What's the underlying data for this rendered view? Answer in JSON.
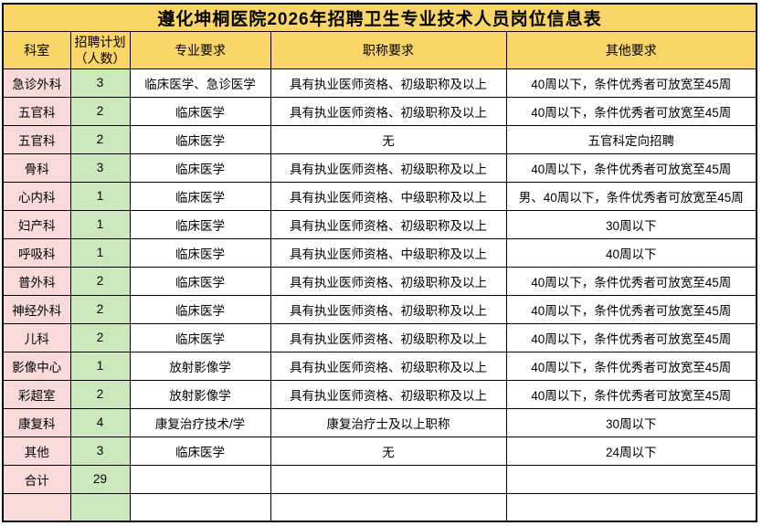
{
  "title": "遵化坤桐医院2026年招聘卫生专业技术人员岗位信息表",
  "table": {
    "headers": [
      "科室",
      "招聘计划（人数）",
      "专业要求",
      "职称要求",
      "其他要求"
    ],
    "column_names": [
      "department",
      "planned-count",
      "major-requirement",
      "title-requirement",
      "other-requirement"
    ],
    "rows": [
      {
        "cells": [
          "急诊外科",
          "3",
          "临床医学、急诊医学",
          "具有执业医师资格、初级职称及以上",
          "40周以下，条件优秀者可放宽至45周"
        ]
      },
      {
        "cells": [
          "五官科",
          "2",
          "临床医学",
          "具有执业医师资格、初级职称及以上",
          "40周以下，条件优秀者可放宽至45周"
        ]
      },
      {
        "cells": [
          "五官科",
          "2",
          "临床医学",
          "无",
          "五官科定向招聘"
        ]
      },
      {
        "cells": [
          "骨科",
          "3",
          "临床医学",
          "具有执业医师资格、初级职称及以上",
          "40周以下，条件优秀者可放宽至45周"
        ]
      },
      {
        "cells": [
          "心内科",
          "1",
          "临床医学",
          "具有执业医师资格、中级职称及以上",
          "男、40周以下，条件优秀者可放宽至45周"
        ]
      },
      {
        "cells": [
          "妇产科",
          "1",
          "临床医学",
          "具有执业医师资格、初级职称及以上",
          "30周以下"
        ]
      },
      {
        "cells": [
          "呼吸科",
          "1",
          "临床医学",
          "具有执业医师资格、中级职称及以上",
          "40周以下"
        ]
      },
      {
        "cells": [
          "普外科",
          "2",
          "临床医学",
          "具有执业医师资格、初级职称及以上",
          "40周以下，条件优秀者可放宽至45周"
        ]
      },
      {
        "cells": [
          "神经外科",
          "2",
          "临床医学",
          "具有执业医师资格、初级职称及以上",
          "40周以下，条件优秀者可放宽至45周"
        ]
      },
      {
        "cells": [
          "儿科",
          "2",
          "临床医学",
          "具有执业医师资格、初级职称及以上",
          "40周以下，条件优秀者可放宽至45周"
        ]
      },
      {
        "cells": [
          "影像中心",
          "1",
          "放射影像学",
          "具有执业医师资格、初级职称及以上",
          "40周以下，条件优秀者可放宽至45周"
        ]
      },
      {
        "cells": [
          "彩超室",
          "2",
          "放射影像学",
          "具有执业医师资格、初级职称及以上",
          "40周以下，条件优秀者可放宽至45周"
        ]
      },
      {
        "cells": [
          "康复科",
          "4",
          "康复治疗技术/学",
          "康复治疗士及以上职称",
          "30周以下"
        ]
      },
      {
        "cells": [
          "其他",
          "3",
          "临床医学",
          "无",
          "24周以下"
        ]
      },
      {
        "cells": [
          "合计",
          "29",
          "",
          "",
          ""
        ]
      },
      {
        "cells": [
          "",
          "",
          "",
          "",
          ""
        ]
      }
    ]
  },
  "colors": {
    "header_bg": "#FAD567",
    "department_col_bg": "#F8DADB",
    "count_col_bg": "#CBE8BC",
    "border": "#000000",
    "cell_bg": "#FFFFFF"
  }
}
